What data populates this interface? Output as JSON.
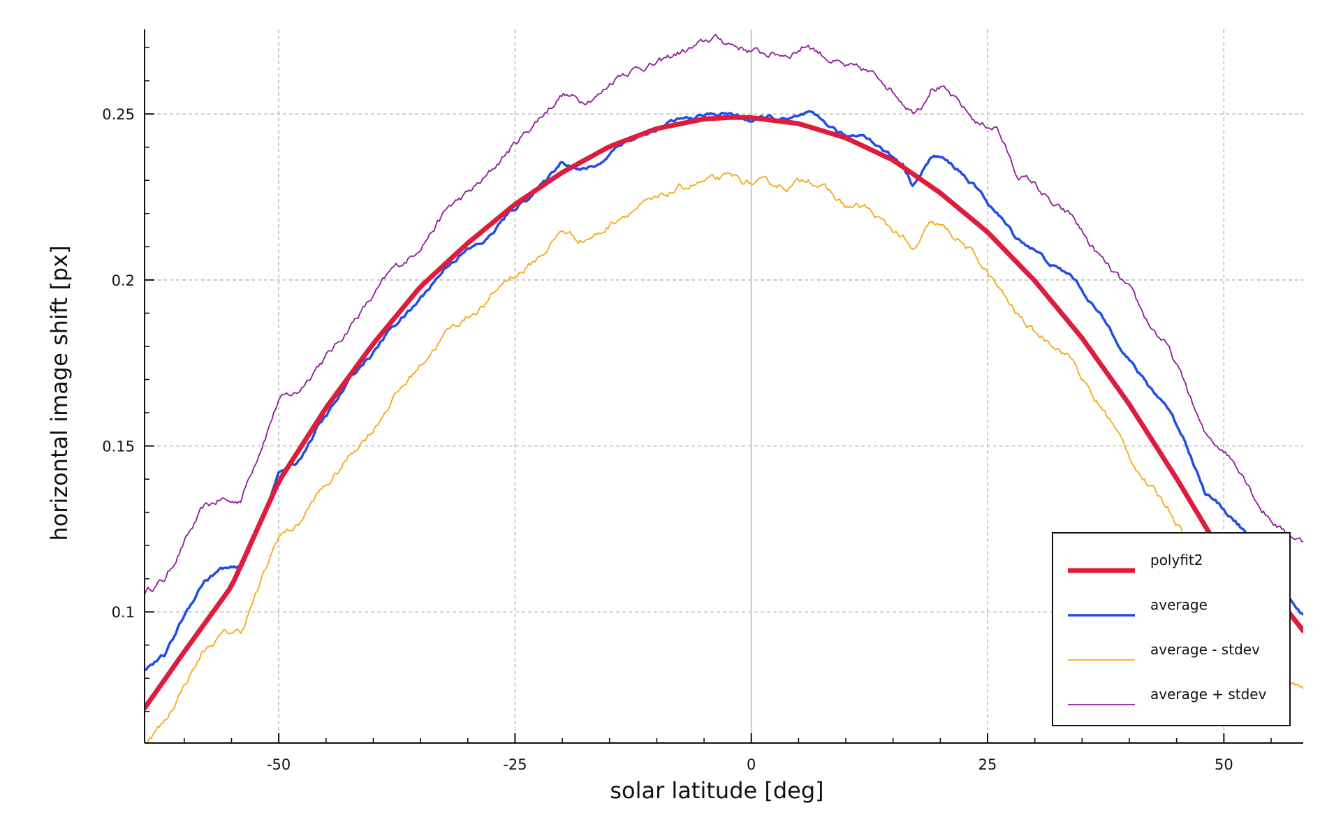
{
  "chart_data": {
    "type": "line",
    "xlabel": "solar latitude [deg]",
    "ylabel": "horizontal image shift [px]",
    "xlim": [
      -64.2,
      58.4
    ],
    "ylim": [
      0.0605,
      0.2755
    ],
    "xticks": [
      -50,
      -25,
      0,
      25,
      50
    ],
    "yticks": [
      0.1,
      0.15,
      0.2,
      0.25
    ],
    "xtick_labels": [
      "-50",
      "-25",
      "0",
      "25",
      "50"
    ],
    "ytick_labels": [
      "0.1",
      "0.15",
      "0.2",
      "0.25"
    ],
    "x_minor_step": 5,
    "y_minor_step": 0.01,
    "grid": true,
    "zero_line": true,
    "legend_position": "bottom-right",
    "series": [
      {
        "name": "polyfit2",
        "color": "#dc1e3c",
        "kind": "smooth",
        "x": [
          -64.2,
          -60,
          -55,
          -50,
          -45,
          -40,
          -35,
          -30,
          -25,
          -20,
          -15,
          -10,
          -5,
          -2,
          0,
          5,
          10,
          15,
          20,
          25,
          30,
          35,
          40,
          45,
          50,
          55,
          58.4
        ],
        "values": [
          0.071,
          0.088,
          0.1077,
          0.1393,
          0.1615,
          0.1808,
          0.198,
          0.2111,
          0.2228,
          0.2324,
          0.2402,
          0.2456,
          0.2485,
          0.249,
          0.2489,
          0.2471,
          0.2428,
          0.2361,
          0.2262,
          0.2144,
          0.1997,
          0.1825,
          0.1625,
          0.1402,
          0.1165,
          0.1067,
          0.0943
        ]
      },
      {
        "name": "average",
        "color": "#1f4de8",
        "kind": "noisy",
        "x": [
          -64.2,
          -62,
          -60,
          -58,
          -56,
          -55,
          -54,
          -52,
          -50,
          -48,
          -46,
          -44,
          -42,
          -40,
          -38,
          -36,
          -34,
          -32,
          -30,
          -28,
          -26,
          -24,
          -22,
          -20,
          -18,
          -16,
          -14,
          -12,
          -10,
          -8,
          -6,
          -4,
          -2,
          0,
          2,
          4,
          6,
          8,
          10,
          12,
          14,
          16,
          17,
          18,
          19,
          20,
          22,
          24,
          26,
          28,
          30,
          32,
          34,
          36,
          38,
          40,
          42,
          44,
          46,
          48,
          50,
          52,
          54,
          56,
          58.4
        ],
        "values": [
          0.083,
          0.087,
          0.099,
          0.109,
          0.113,
          0.113,
          0.113,
          0.126,
          0.142,
          0.145,
          0.155,
          0.163,
          0.172,
          0.178,
          0.186,
          0.191,
          0.198,
          0.205,
          0.209,
          0.212,
          0.219,
          0.224,
          0.229,
          0.236,
          0.233,
          0.235,
          0.241,
          0.243,
          0.245,
          0.248,
          0.249,
          0.25,
          0.25,
          0.248,
          0.249,
          0.248,
          0.25,
          0.247,
          0.243,
          0.244,
          0.239,
          0.235,
          0.229,
          0.232,
          0.237,
          0.237,
          0.233,
          0.227,
          0.22,
          0.213,
          0.209,
          0.204,
          0.201,
          0.193,
          0.185,
          0.176,
          0.168,
          0.162,
          0.151,
          0.136,
          0.131,
          0.125,
          0.115,
          0.108,
          0.099
        ]
      },
      {
        "name": "average - stdev",
        "color": "#f7a815",
        "kind": "noisy",
        "x": [
          -64.2,
          -62,
          -60,
          -58,
          -56,
          -55,
          -54,
          -52,
          -50,
          -48,
          -46,
          -44,
          -42,
          -40,
          -38,
          -36,
          -34,
          -32,
          -30,
          -28,
          -26,
          -24,
          -22,
          -20,
          -18,
          -16,
          -14,
          -12,
          -10,
          -8,
          -6,
          -4,
          -2,
          0,
          2,
          4,
          6,
          8,
          10,
          12,
          14,
          16,
          17,
          18,
          19,
          20,
          22,
          24,
          26,
          28,
          30,
          32,
          34,
          36,
          38,
          40,
          42,
          44,
          46,
          48,
          50,
          52,
          54,
          56,
          58.4
        ],
        "values": [
          0.061,
          0.067,
          0.078,
          0.088,
          0.093,
          0.094,
          0.094,
          0.108,
          0.123,
          0.126,
          0.135,
          0.141,
          0.149,
          0.155,
          0.164,
          0.171,
          0.178,
          0.185,
          0.189,
          0.193,
          0.2,
          0.203,
          0.208,
          0.215,
          0.212,
          0.214,
          0.219,
          0.222,
          0.224,
          0.227,
          0.229,
          0.23,
          0.231,
          0.229,
          0.229,
          0.228,
          0.231,
          0.227,
          0.222,
          0.222,
          0.217,
          0.213,
          0.208,
          0.212,
          0.217,
          0.216,
          0.212,
          0.206,
          0.198,
          0.19,
          0.184,
          0.181,
          0.176,
          0.165,
          0.158,
          0.147,
          0.138,
          0.132,
          0.123,
          0.109,
          0.103,
          0.097,
          0.089,
          0.082,
          0.077
        ]
      },
      {
        "name": "average + stdev",
        "color": "#8e1b9a",
        "kind": "noisy",
        "x": [
          -64.2,
          -62,
          -60,
          -58,
          -56,
          -55,
          -54,
          -52,
          -50,
          -48,
          -46,
          -44,
          -42,
          -40,
          -38,
          -36,
          -34,
          -32,
          -30,
          -28,
          -26,
          -24,
          -22,
          -20,
          -18,
          -16,
          -14,
          -12,
          -10,
          -8,
          -6,
          -4,
          -2,
          0,
          2,
          4,
          6,
          8,
          10,
          12,
          14,
          16,
          17,
          18,
          19,
          20,
          22,
          24,
          26,
          28,
          30,
          32,
          34,
          36,
          38,
          40,
          42,
          44,
          46,
          48,
          50,
          52,
          54,
          56,
          58.4
        ],
        "values": [
          0.106,
          0.11,
          0.121,
          0.131,
          0.134,
          0.133,
          0.134,
          0.149,
          0.164,
          0.166,
          0.174,
          0.18,
          0.188,
          0.195,
          0.203,
          0.207,
          0.214,
          0.222,
          0.226,
          0.231,
          0.238,
          0.244,
          0.25,
          0.256,
          0.254,
          0.256,
          0.262,
          0.264,
          0.265,
          0.268,
          0.27,
          0.273,
          0.271,
          0.269,
          0.268,
          0.268,
          0.271,
          0.267,
          0.264,
          0.263,
          0.26,
          0.254,
          0.251,
          0.253,
          0.258,
          0.258,
          0.253,
          0.247,
          0.246,
          0.232,
          0.229,
          0.222,
          0.219,
          0.21,
          0.203,
          0.197,
          0.187,
          0.18,
          0.168,
          0.153,
          0.149,
          0.142,
          0.131,
          0.125,
          0.121
        ]
      }
    ]
  }
}
